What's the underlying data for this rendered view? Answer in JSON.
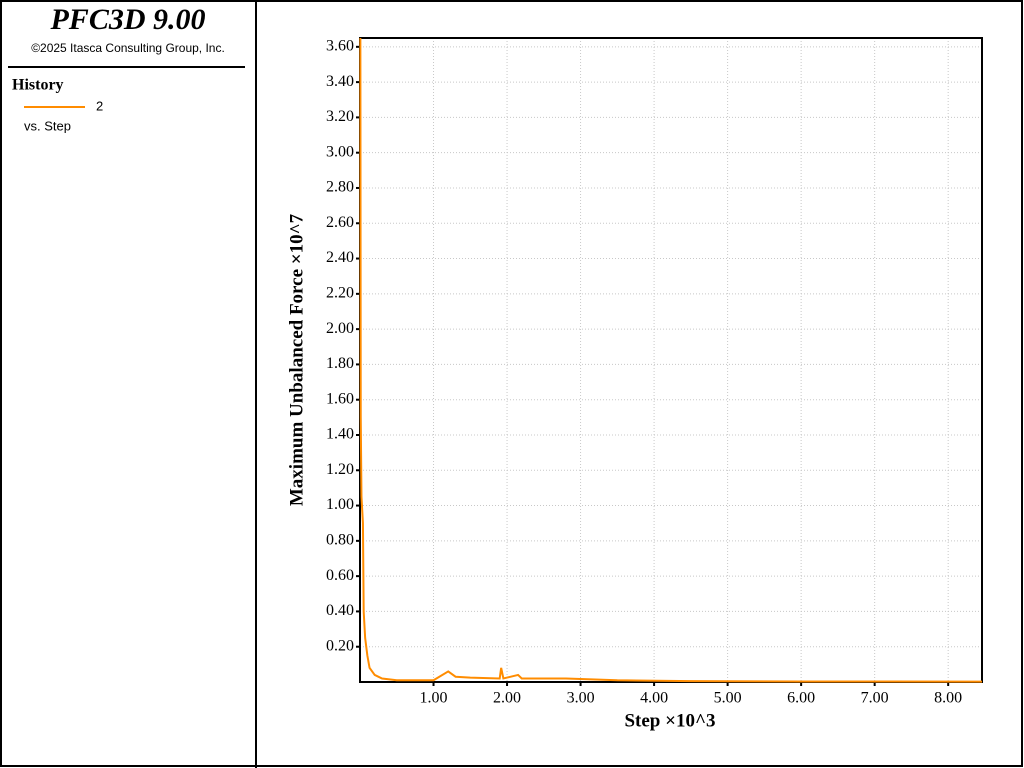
{
  "header": {
    "title": "PFC3D 9.00",
    "copyright": "©2025 Itasca Consulting Group, Inc."
  },
  "legend": {
    "title": "History",
    "note": "vs. Step"
  },
  "chart_data": {
    "type": "line",
    "xlabel": "Step ×10^3",
    "ylabel": "Maximum Unbalanced Force ×10^7",
    "x": [
      0.005,
      0.01,
      0.02,
      0.04,
      0.05,
      0.07,
      0.1,
      0.13,
      0.2,
      0.3,
      0.5,
      1.0,
      1.2,
      1.3,
      1.5,
      1.9,
      1.92,
      1.95,
      2.15,
      2.2,
      2.8,
      3.5,
      4.5,
      6.0,
      8.46
    ],
    "series": [
      {
        "name": "2",
        "color": "#ff8c00",
        "values": [
          3.65,
          1.5,
          1.05,
          0.9,
          0.4,
          0.25,
          0.15,
          0.08,
          0.04,
          0.02,
          0.01,
          0.01,
          0.06,
          0.03,
          0.025,
          0.02,
          0.08,
          0.02,
          0.04,
          0.02,
          0.02,
          0.01,
          0.005,
          0.003,
          0.002
        ]
      }
    ],
    "xlim": [
      0,
      8.46
    ],
    "ylim": [
      0,
      3.65
    ],
    "xticks": [
      {
        "value": 1,
        "label": "1.00"
      },
      {
        "value": 2,
        "label": "2.00"
      },
      {
        "value": 3,
        "label": "3.00"
      },
      {
        "value": 4,
        "label": "4.00"
      },
      {
        "value": 5,
        "label": "5.00"
      },
      {
        "value": 6,
        "label": "6.00"
      },
      {
        "value": 7,
        "label": "7.00"
      },
      {
        "value": 8,
        "label": "8.00"
      }
    ],
    "yticks": [
      {
        "value": 0.2,
        "label": "0.20"
      },
      {
        "value": 0.4,
        "label": "0.40"
      },
      {
        "value": 0.6,
        "label": "0.60"
      },
      {
        "value": 0.8,
        "label": "0.80"
      },
      {
        "value": 1.0,
        "label": "1.00"
      },
      {
        "value": 1.2,
        "label": "1.20"
      },
      {
        "value": 1.4,
        "label": "1.40"
      },
      {
        "value": 1.6,
        "label": "1.60"
      },
      {
        "value": 1.8,
        "label": "1.80"
      },
      {
        "value": 2.0,
        "label": "2.00"
      },
      {
        "value": 2.2,
        "label": "2.20"
      },
      {
        "value": 2.4,
        "label": "2.40"
      },
      {
        "value": 2.6,
        "label": "2.60"
      },
      {
        "value": 2.8,
        "label": "2.80"
      },
      {
        "value": 3.0,
        "label": "3.00"
      },
      {
        "value": 3.2,
        "label": "3.20"
      },
      {
        "value": 3.4,
        "label": "3.40"
      },
      {
        "value": 3.6,
        "label": "3.60"
      }
    ],
    "grid": true
  }
}
